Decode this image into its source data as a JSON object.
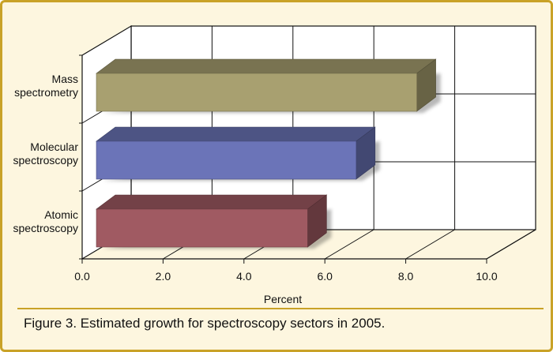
{
  "chart_data": {
    "type": "bar",
    "orientation": "horizontal",
    "style": "3d",
    "title": "",
    "xlabel": "Percent",
    "ylabel": "",
    "xlim": [
      0,
      10
    ],
    "xticks": [
      "0.0",
      "2.0",
      "4.0",
      "6.0",
      "8.0",
      "10.0"
    ],
    "grid": true,
    "categories": [
      "Mass spectrometry",
      "Molecular spectroscopy",
      "Atomic spectroscopy"
    ],
    "category_lines": [
      [
        "Mass",
        "spectrometry"
      ],
      [
        "Molecular",
        "spectroscopy"
      ],
      [
        "Atomic",
        "spectroscopy"
      ]
    ],
    "values": [
      8.0,
      6.5,
      5.3
    ],
    "colors": [
      "#a8a070",
      "#6b74b8",
      "#a05a62"
    ]
  },
  "caption": "Figure 3. Estimated growth for spectroscopy sectors in 2005."
}
